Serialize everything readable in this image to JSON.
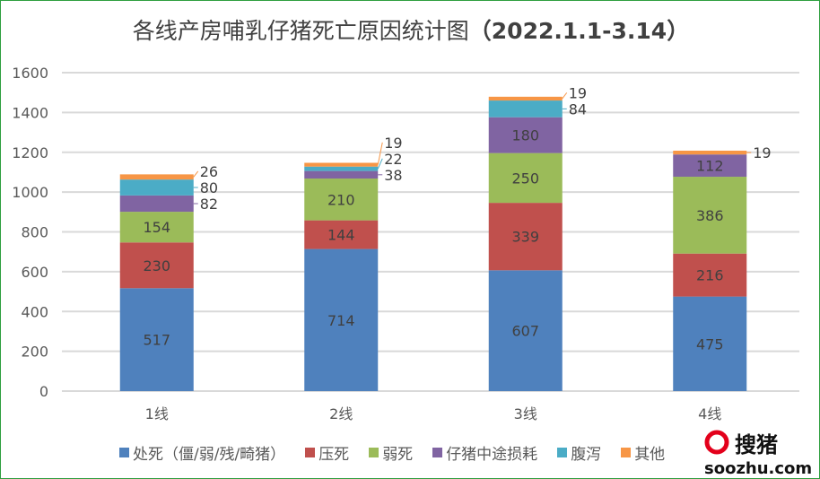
{
  "chart_data": {
    "type": "bar",
    "stacked": true,
    "title": "各线产房哺乳仔猪死亡原因统计图",
    "title_suffix": "（2022.1.1-3.14）",
    "categories": [
      "1线",
      "2线",
      "3线",
      "4线"
    ],
    "ylim": [
      0,
      1600
    ],
    "yticks": [
      0,
      200,
      400,
      600,
      800,
      1000,
      1200,
      1400,
      1600
    ],
    "grid": true,
    "legend_position": "bottom",
    "series": [
      {
        "name": "处死（僵/弱/残/畸猪）",
        "color": "#4f81bd",
        "values": [
          517,
          714,
          607,
          475
        ]
      },
      {
        "name": "压死",
        "color": "#c0504d",
        "values": [
          230,
          144,
          339,
          216
        ]
      },
      {
        "name": "弱死",
        "color": "#9bbb59",
        "values": [
          154,
          210,
          250,
          386
        ]
      },
      {
        "name": "仔猪中途损耗",
        "color": "#8064a2",
        "values": [
          82,
          38,
          180,
          112
        ]
      },
      {
        "name": "腹泻",
        "color": "#4bacc6",
        "values": [
          80,
          22,
          84,
          0
        ]
      },
      {
        "name": "其他",
        "color": "#f79646",
        "values": [
          26,
          19,
          19,
          19
        ]
      }
    ]
  },
  "watermark": {
    "logo_text": "搜猪",
    "url": "soozhu.com",
    "color": "#e3001b"
  }
}
